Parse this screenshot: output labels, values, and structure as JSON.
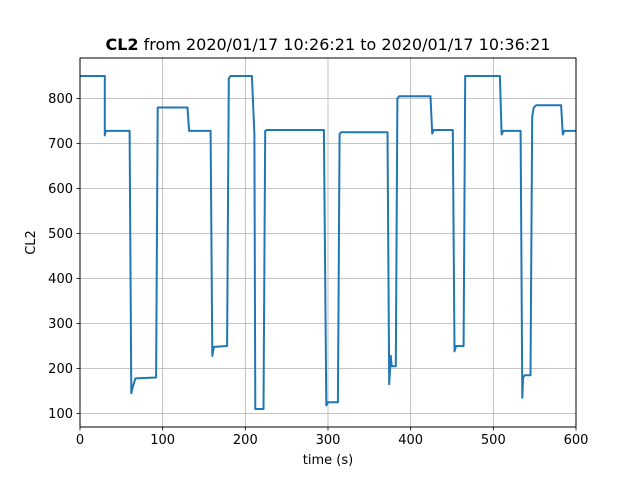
{
  "chart_data": {
    "type": "line",
    "title": {
      "bold_part": "CL2",
      "rest": " from 2020/01/17 10:26:21 to 2020/01/17 10:36:21"
    },
    "xlabel": "time (s)",
    "ylabel": "CL2",
    "xlim": [
      0,
      600
    ],
    "ylim": [
      70,
      890
    ],
    "xticks": [
      0,
      100,
      200,
      300,
      400,
      500,
      600
    ],
    "yticks": [
      100,
      200,
      300,
      400,
      500,
      600,
      700,
      800
    ],
    "grid": true,
    "series": [
      {
        "color": "#1f77b4",
        "points": [
          [
            0,
            850
          ],
          [
            30,
            850
          ],
          [
            30,
            718
          ],
          [
            31,
            728
          ],
          [
            60,
            728
          ],
          [
            62,
            145
          ],
          [
            64,
            160
          ],
          [
            67,
            178
          ],
          [
            92,
            180
          ],
          [
            94,
            780
          ],
          [
            96,
            780
          ],
          [
            130,
            780
          ],
          [
            132,
            728
          ],
          [
            158,
            728
          ],
          [
            160,
            228
          ],
          [
            162,
            248
          ],
          [
            178,
            250
          ],
          [
            180,
            845
          ],
          [
            182,
            850
          ],
          [
            208,
            850
          ],
          [
            211,
            720
          ],
          [
            212,
            110
          ],
          [
            222,
            110
          ],
          [
            224,
            728
          ],
          [
            226,
            730
          ],
          [
            295,
            730
          ],
          [
            298,
            118
          ],
          [
            300,
            125
          ],
          [
            312,
            125
          ],
          [
            314,
            722
          ],
          [
            316,
            725
          ],
          [
            372,
            725
          ],
          [
            374,
            165
          ],
          [
            376,
            228
          ],
          [
            377,
            205
          ],
          [
            382,
            205
          ],
          [
            384,
            800
          ],
          [
            386,
            805
          ],
          [
            424,
            805
          ],
          [
            426,
            722
          ],
          [
            428,
            730
          ],
          [
            451,
            730
          ],
          [
            453,
            238
          ],
          [
            455,
            250
          ],
          [
            464,
            250
          ],
          [
            466,
            850
          ],
          [
            508,
            850
          ],
          [
            510,
            720
          ],
          [
            512,
            728
          ],
          [
            533,
            728
          ],
          [
            535,
            135
          ],
          [
            536,
            180
          ],
          [
            538,
            185
          ],
          [
            545,
            185
          ],
          [
            547,
            760
          ],
          [
            549,
            780
          ],
          [
            552,
            785
          ],
          [
            582,
            785
          ],
          [
            584,
            720
          ],
          [
            586,
            728
          ],
          [
            600,
            728
          ]
        ]
      }
    ]
  }
}
